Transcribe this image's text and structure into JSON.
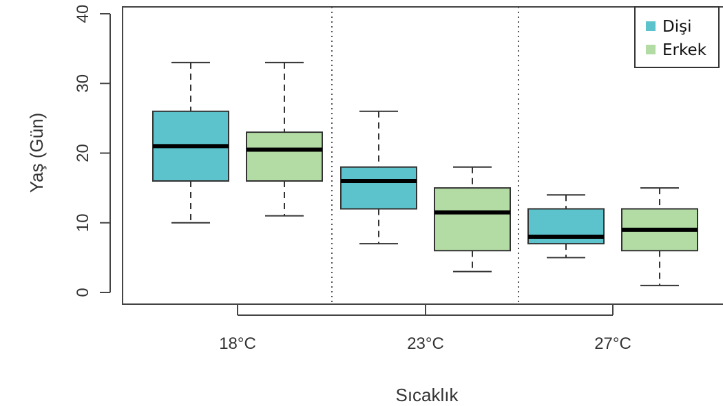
{
  "chart_data": {
    "type": "box",
    "title": "",
    "xlabel": "Sıcaklık",
    "ylabel": "Yaş (Gün)",
    "ylim": [
      0,
      40
    ],
    "yticks": [
      "0",
      "10",
      "20",
      "30",
      "40"
    ],
    "categories": [
      "18°C",
      "23°C",
      "27°C"
    ],
    "legend": {
      "position": "top-right"
    },
    "colors": {
      "Dişi": "#5cc3cc",
      "Erkek": "#b3dca4"
    },
    "series": [
      {
        "name": "Dişi",
        "boxes": [
          {
            "category": "18°C",
            "min": 10,
            "q1": 16,
            "median": 21,
            "q3": 26,
            "max": 33
          },
          {
            "category": "23°C",
            "min": 7,
            "q1": 12,
            "median": 16,
            "q3": 18,
            "max": 26
          },
          {
            "category": "27°C",
            "min": 5,
            "q1": 7,
            "median": 8,
            "q3": 12,
            "max": 14
          }
        ]
      },
      {
        "name": "Erkek",
        "boxes": [
          {
            "category": "18°C",
            "min": 11,
            "q1": 16,
            "median": 20.5,
            "q3": 23,
            "max": 33
          },
          {
            "category": "23°C",
            "min": 3,
            "q1": 6,
            "median": 11.5,
            "q3": 15,
            "max": 18
          },
          {
            "category": "27°C",
            "min": 1,
            "q1": 6,
            "median": 9,
            "q3": 12,
            "max": 15
          }
        ]
      }
    ]
  }
}
